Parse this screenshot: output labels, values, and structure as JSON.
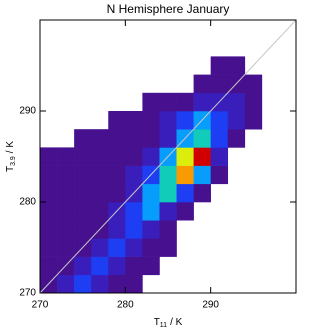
{
  "chart_data": {
    "type": "heatmap",
    "title": "N Hemisphere January",
    "xlabel": {
      "symbol": "T",
      "subscript": "11",
      "unit": "/ K"
    },
    "ylabel": {
      "symbol": "T",
      "subscript": "3.9",
      "unit": "/ K"
    },
    "xbins": [
      270,
      272,
      274,
      276,
      278,
      280,
      282,
      284,
      286,
      288,
      290,
      292,
      294,
      296,
      298,
      300
    ],
    "ybins": [
      270,
      272,
      274,
      276,
      278,
      280,
      282,
      284,
      286,
      288,
      290,
      292,
      294,
      296,
      298,
      300
    ],
    "z": [
      [
        1,
        2,
        3,
        2,
        1,
        1,
        null,
        null,
        null,
        null,
        null,
        null,
        null,
        null,
        null
      ],
      [
        1,
        1,
        2,
        3,
        2,
        1,
        1,
        null,
        null,
        null,
        null,
        null,
        null,
        null,
        null
      ],
      [
        1,
        1,
        1,
        2,
        3,
        2,
        1,
        1,
        null,
        null,
        null,
        null,
        null,
        null,
        null
      ],
      [
        1,
        1,
        1,
        1,
        2,
        3,
        2,
        1,
        null,
        null,
        null,
        null,
        null,
        null,
        null
      ],
      [
        1,
        1,
        1,
        1,
        2,
        3,
        4,
        2,
        1,
        null,
        null,
        null,
        null,
        null,
        null
      ],
      [
        1,
        1,
        1,
        1,
        1,
        2,
        4,
        5,
        3,
        1,
        null,
        null,
        null,
        null,
        null
      ],
      [
        1,
        1,
        1,
        1,
        1,
        2,
        3,
        5,
        8,
        4,
        1,
        null,
        null,
        null,
        null
      ],
      [
        1,
        1,
        1,
        1,
        1,
        1,
        2,
        4,
        7,
        10,
        2,
        null,
        null,
        null,
        null
      ],
      [
        null,
        null,
        1,
        1,
        1,
        1,
        1,
        2,
        4,
        5,
        3,
        1,
        null,
        null,
        null
      ],
      [
        null,
        null,
        null,
        null,
        1,
        1,
        1,
        2,
        3,
        4,
        3,
        2,
        1,
        null,
        null
      ],
      [
        null,
        null,
        null,
        null,
        null,
        null,
        1,
        1,
        1,
        2,
        2,
        2,
        1,
        null,
        null
      ],
      [
        null,
        null,
        null,
        null,
        null,
        null,
        null,
        null,
        null,
        1,
        1,
        1,
        1,
        null,
        null
      ],
      [
        null,
        null,
        null,
        null,
        null,
        null,
        null,
        null,
        null,
        null,
        1,
        1,
        null,
        null,
        null
      ],
      [
        null,
        null,
        null,
        null,
        null,
        null,
        null,
        null,
        null,
        null,
        null,
        null,
        null,
        null,
        null
      ],
      [
        null,
        null,
        null,
        null,
        null,
        null,
        null,
        null,
        null,
        null,
        null,
        null,
        null,
        null,
        null
      ]
    ],
    "zlim": [
      0,
      10
    ],
    "colormap": [
      "#3c0a7a",
      "#4a1298",
      "#2030f0",
      "#00b8ff",
      "#20e070",
      "#f0f000",
      "#ff6000",
      "#d00000"
    ],
    "diagonal": true,
    "diagonal_color": "#c8c8c8",
    "xlim": [
      270,
      300
    ],
    "ylim": [
      270,
      300
    ],
    "xticks": [
      270,
      280,
      290
    ],
    "yticks": [
      270,
      280,
      290
    ]
  }
}
